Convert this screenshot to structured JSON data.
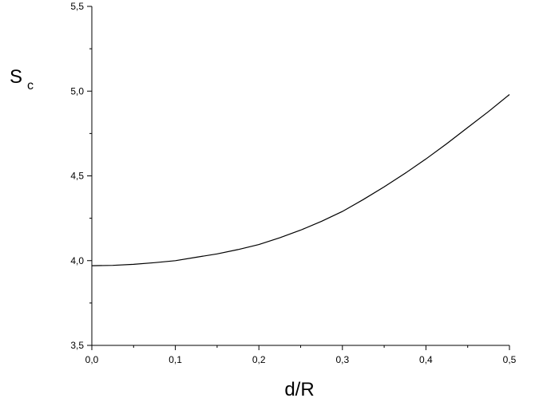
{
  "chart_data": {
    "type": "line",
    "xlabel": "d/R",
    "ylabel": {
      "main": "S",
      "sub": "c"
    },
    "xlim": [
      0.0,
      0.5
    ],
    "ylim": [
      3.5,
      5.5
    ],
    "x_ticks": [
      0.0,
      0.1,
      0.2,
      0.3,
      0.4,
      0.5
    ],
    "x_tick_labels": [
      "0,0",
      "0,1",
      "0,2",
      "0,3",
      "0,4",
      "0,5"
    ],
    "y_ticks": [
      3.5,
      4.0,
      4.5,
      5.0,
      5.5
    ],
    "y_tick_labels": [
      "3,5",
      "4,0",
      "4,5",
      "5,0",
      "5,5"
    ],
    "x_minor_step": 0.05,
    "y_minor_step": 0.25,
    "grid": false,
    "series": [
      {
        "x": [
          0.0,
          0.025,
          0.05,
          0.075,
          0.1,
          0.125,
          0.15,
          0.175,
          0.2,
          0.225,
          0.25,
          0.275,
          0.3,
          0.325,
          0.35,
          0.375,
          0.4,
          0.425,
          0.45,
          0.475,
          0.5
        ],
        "y": [
          3.97,
          3.972,
          3.978,
          3.988,
          4.0,
          4.02,
          4.04,
          4.065,
          4.095,
          4.135,
          4.18,
          4.232,
          4.29,
          4.36,
          4.435,
          4.515,
          4.6,
          4.69,
          4.785,
          4.88,
          4.98
        ]
      }
    ]
  }
}
